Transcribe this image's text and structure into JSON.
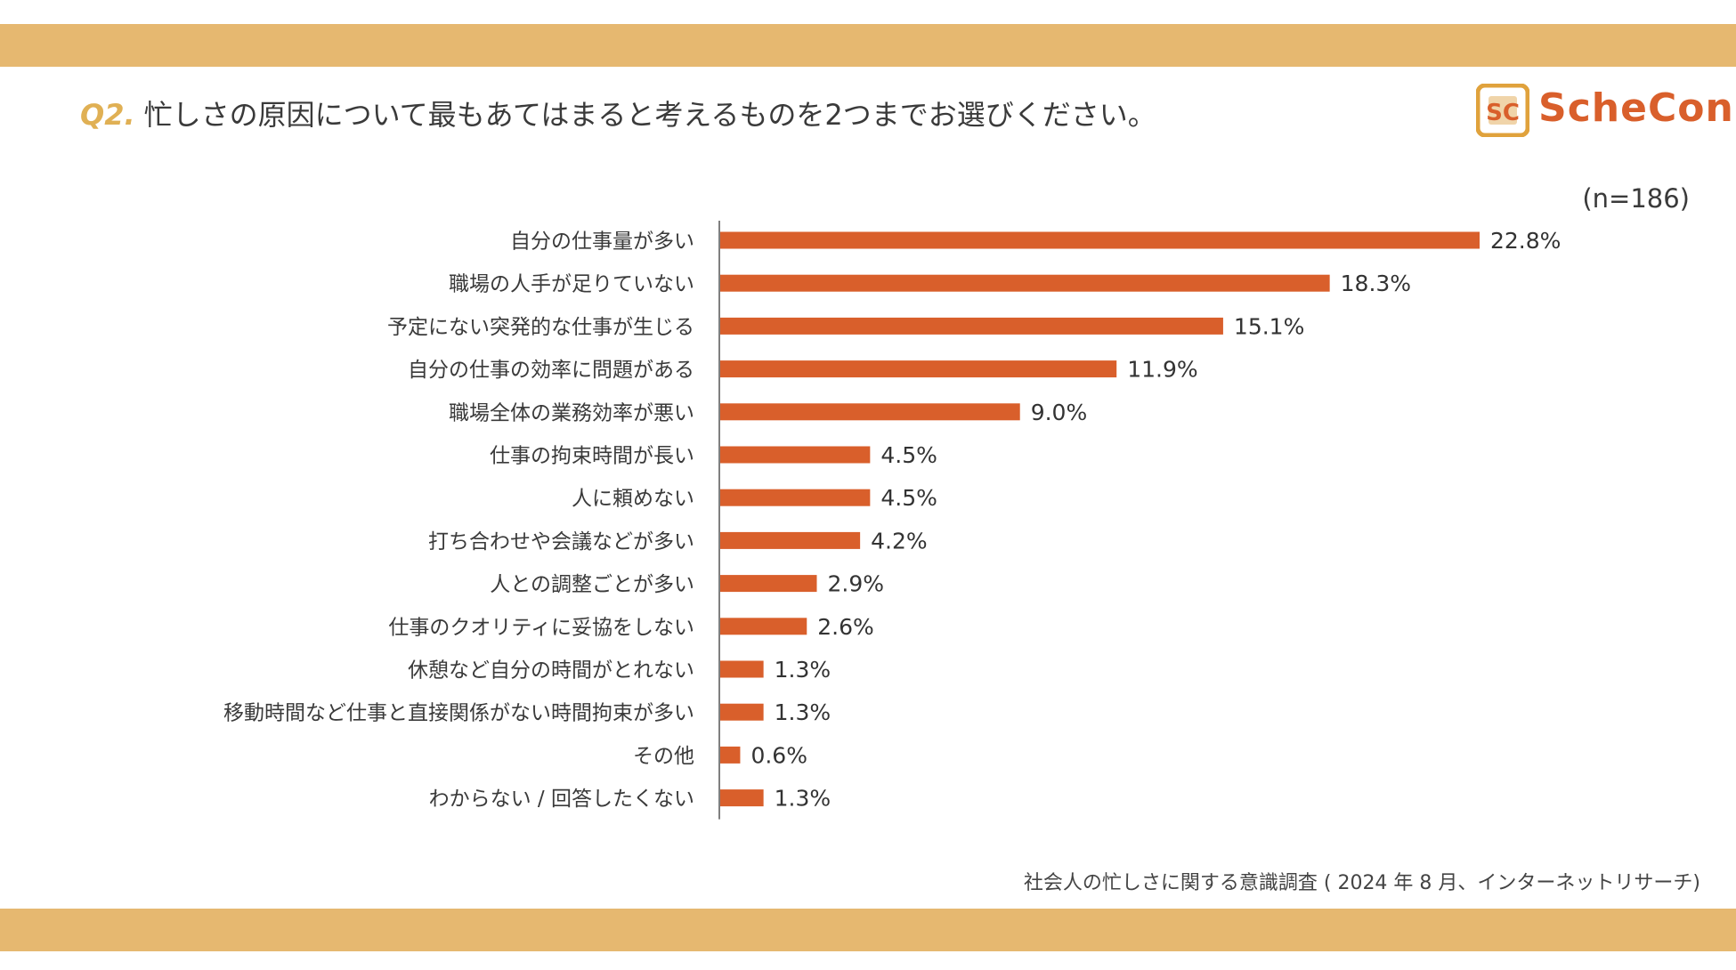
{
  "colors": {
    "band": "#e6b870",
    "accent_orange": "#d95f2b",
    "question_prefix": "#e0b054",
    "axis": "#555555"
  },
  "header": {
    "question_number": "Q2.",
    "question_text": "忙しさの原因について最もあてはまると考えるものを2つまでお選びください。"
  },
  "logo": {
    "mark_text": "SC",
    "brand_text": "ScheCon"
  },
  "chart_data": {
    "type": "bar",
    "orientation": "horizontal",
    "sample_size": "(n=186)",
    "categories": [
      "自分の仕事量が多い",
      "職場の人手が足りていない",
      "予定にない突発的な仕事が生じる",
      "自分の仕事の効率に問題がある",
      "職場全体の業務効率が悪い",
      "仕事の拘束時間が長い",
      "人に頼めない",
      "打ち合わせや会議などが多い",
      "人との調整ごとが多い",
      "仕事のクオリティに妥協をしない",
      "休憩など自分の時間がとれない",
      "移動時間など仕事と直接関係がない時間拘束が多い",
      "その他",
      "わからない / 回答したくない"
    ],
    "values": [
      22.8,
      18.3,
      15.1,
      11.9,
      9.0,
      4.5,
      4.5,
      4.2,
      2.9,
      2.6,
      1.3,
      1.3,
      0.6,
      1.3
    ],
    "value_labels": [
      "22.8%",
      "18.3%",
      "15.1%",
      "11.9%",
      "9.0%",
      "4.5%",
      "4.5%",
      "4.2%",
      "2.9%",
      "2.6%",
      "1.3%",
      "1.3%",
      "0.6%",
      "1.3%"
    ],
    "xlim": [
      0,
      30
    ],
    "grid": false
  },
  "footer": {
    "source": "社会人の忙しさに関する意識調査 ( 2024 年 8 月、インターネットリサーチ)"
  }
}
